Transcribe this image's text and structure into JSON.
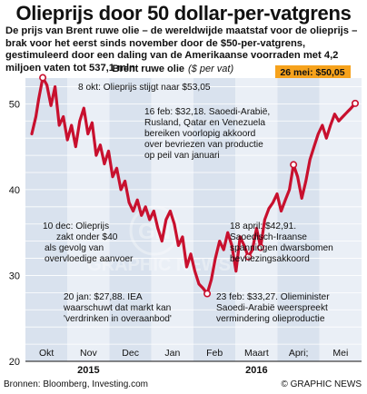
{
  "title": "Olieprijs door 50 dollar-per-vatgrens",
  "subtitle": "De prijs van Brent ruwe olie – de wereldwijde maatstaf voor de olieprijs – brak voor het eerst sinds november door de $50-per-vatgrens, gestimuleerd door een daling van de Amerikaanse voorraden met 4,2 miljoen vaten tot 537,1 mln",
  "colors": {
    "line": "#c8102e",
    "bg_even": "#d9e2ee",
    "bg_odd": "#eaeff6",
    "highlight": "#f6a21c",
    "grid": "#ffffff",
    "text": "#111111"
  },
  "footer": {
    "sources": "Bronnen: Bloomberg, Investing.com",
    "credit": "© GRAPHIC NEWS"
  },
  "chart_data": {
    "type": "line",
    "title": "Brent ruwe olie",
    "unit_note": "($ per vat)",
    "ylim": [
      20,
      53
    ],
    "yticks": [
      20,
      30,
      40,
      50
    ],
    "grid": true,
    "months": [
      "Okt",
      "Nov",
      "Dec",
      "Jan",
      "Feb",
      "Maart",
      "Apri;",
      "Mei"
    ],
    "years": [
      "2015",
      "2016"
    ],
    "x": [
      0,
      3,
      5,
      8,
      11,
      14,
      17,
      20,
      23,
      26,
      29,
      32,
      35,
      38,
      41,
      44,
      47,
      50,
      53,
      56,
      59,
      62,
      65,
      68,
      71,
      74,
      77,
      80,
      83,
      86,
      89,
      92,
      95,
      98,
      101,
      104,
      107,
      110,
      113,
      116,
      119,
      122,
      125,
      128,
      131,
      134,
      137,
      140,
      143,
      146,
      149,
      152,
      155,
      158,
      161,
      164,
      167,
      170,
      173,
      176,
      179,
      182,
      185,
      188,
      191,
      194,
      197,
      200,
      203,
      206,
      209,
      212,
      215,
      218,
      221,
      224,
      227,
      230,
      233,
      236
    ],
    "y": [
      46.5,
      48.5,
      50.5,
      53.05,
      52.2,
      49.8,
      52.0,
      47.5,
      48.5,
      45.8,
      47.5,
      45.0,
      48.0,
      49.5,
      46.5,
      47.8,
      44.0,
      45.2,
      43.0,
      44.5,
      41.5,
      42.5,
      40.0,
      41.0,
      38.5,
      37.5,
      38.8,
      37.0,
      38.0,
      36.5,
      37.5,
      35.5,
      34.0,
      36.5,
      37.5,
      36.0,
      33.5,
      34.5,
      31.0,
      32.5,
      30.5,
      29.0,
      28.5,
      27.88,
      29.5,
      32.0,
      34.0,
      33.0,
      35.0,
      33.5,
      30.5,
      34.5,
      33.5,
      32.18,
      33.0,
      35.5,
      33.27,
      36.5,
      37.8,
      38.5,
      39.5,
      37.5,
      38.8,
      40.0,
      42.91,
      41.5,
      39.0,
      41.0,
      43.5,
      45.0,
      46.5,
      47.5,
      46.0,
      47.5,
      48.8,
      48.0,
      48.5,
      49.0,
      49.5,
      50.05
    ]
  },
  "annotations": [
    {
      "text": "8 okt: Olieprijs stijgt naar $53,05"
    },
    {
      "text": "16 feb: $32,18. Saoedi-Arabië, Rusland, Qatar en Venezuela bereiken voorlopig akkoord over bevriezen van productie op peil van januari"
    },
    {
      "text": "10 dec: Olieprijs zakt onder $40 als gevolg van overvloedige aanvoer"
    },
    {
      "text": "18 april: $42,91. Saoedisch-Iraanse spanningen dwarsbomen bevriezingsakkoord"
    },
    {
      "text": "20 jan: $27,88. IEA waarschuwt dat markt kan 'verdrinken in overaanbod'"
    },
    {
      "text": "23 feb: $33,27. Olieminister Saoedi-Arabië weerspreekt vermindering olieproductie"
    },
    {
      "text": "26 mei: $50,05"
    }
  ]
}
